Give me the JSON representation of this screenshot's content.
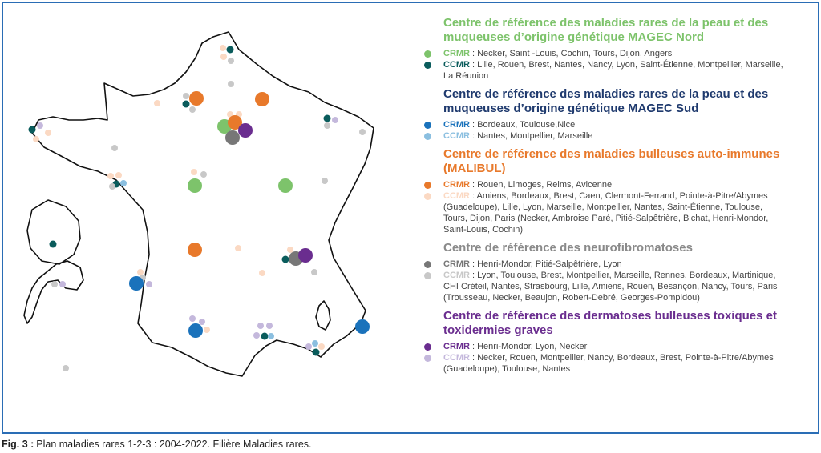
{
  "legend": {
    "sections": [
      {
        "title": "Centre de référence des maladies rares de la peau et des muqueuses d’origine génétique MAGEC Nord",
        "items": [
          {
            "label": "CRMR",
            "text": ": Necker, Saint -Louis, Cochin, Tours, Dijon, Angers"
          },
          {
            "label": "CCMR",
            "text": ": Lille, Rouen, Brest, Nantes, Nancy, Lyon, Saint-Étienne, Montpellier, Marseille, La Réunion"
          }
        ]
      },
      {
        "title": "Centre de référence des maladies rares de la peau et des muqueuses d’origine génétique MAGEC Sud",
        "items": [
          {
            "label": "CRMR",
            "text": ": Bordeaux, Toulouse,Nice"
          },
          {
            "label": "CCMR",
            "text": ": Nantes, Montpellier, Marseille"
          }
        ]
      },
      {
        "title": "Centre de référence des maladies bulleuses auto-immunes  (MALIBUL)",
        "items": [
          {
            "label": "CRMR",
            "text": ": Rouen, Limoges, Reims, Avicenne"
          },
          {
            "label": "CCMR",
            "text": ": Amiens, Bordeaux, Brest, Caen, Clermont-Ferrand, Pointe-à-Pitre/Abymes (Guadeloupe), Lille, Lyon, Marseille, Montpellier, Nantes, Saint-Étienne, Toulouse, Tours, Dijon, Paris (Necker, Ambroise Paré, Pitié-Salpêtrière, Bichat, Henri-Mondor, Saint-Louis, Cochin)"
          }
        ]
      },
      {
        "title": "Centre de référence des neurofibromatoses",
        "items": [
          {
            "label": "CRMR",
            "text": ": Henri-Mondor, Pitié-Salpêtrière, Lyon"
          },
          {
            "label": "CCMR",
            "text": ": Lyon, Toulouse, Brest, Montpellier, Marseille, Rennes, Bordeaux, Martinique, CHI Créteil, Nantes, Strasbourg, Lille, Amiens, Rouen, Besançon, Nancy, Tours, Paris (Trousseau, Necker, Beaujon, Robert-Debré, Georges-Pompidou)"
          }
        ]
      },
      {
        "title": "Centre de référence des dermatoses bulleuses toxiques et toxidermies graves",
        "items": [
          {
            "label": "CRMR",
            "text": ": Henri-Mondor, Lyon, Necker"
          },
          {
            "label": "CCMR",
            "text": ": Necker, Rouen, Montpellier, Nancy, Bordeaux, Brest, Pointe-à-Pitre/Abymes (Guadeloupe), Toulouse, Nantes"
          }
        ]
      }
    ]
  },
  "caption": {
    "label": "Fig. 3 :",
    "text": "Plan maladies rares 1-2-3 : 2004-2022. Filière Maladies rares."
  }
}
